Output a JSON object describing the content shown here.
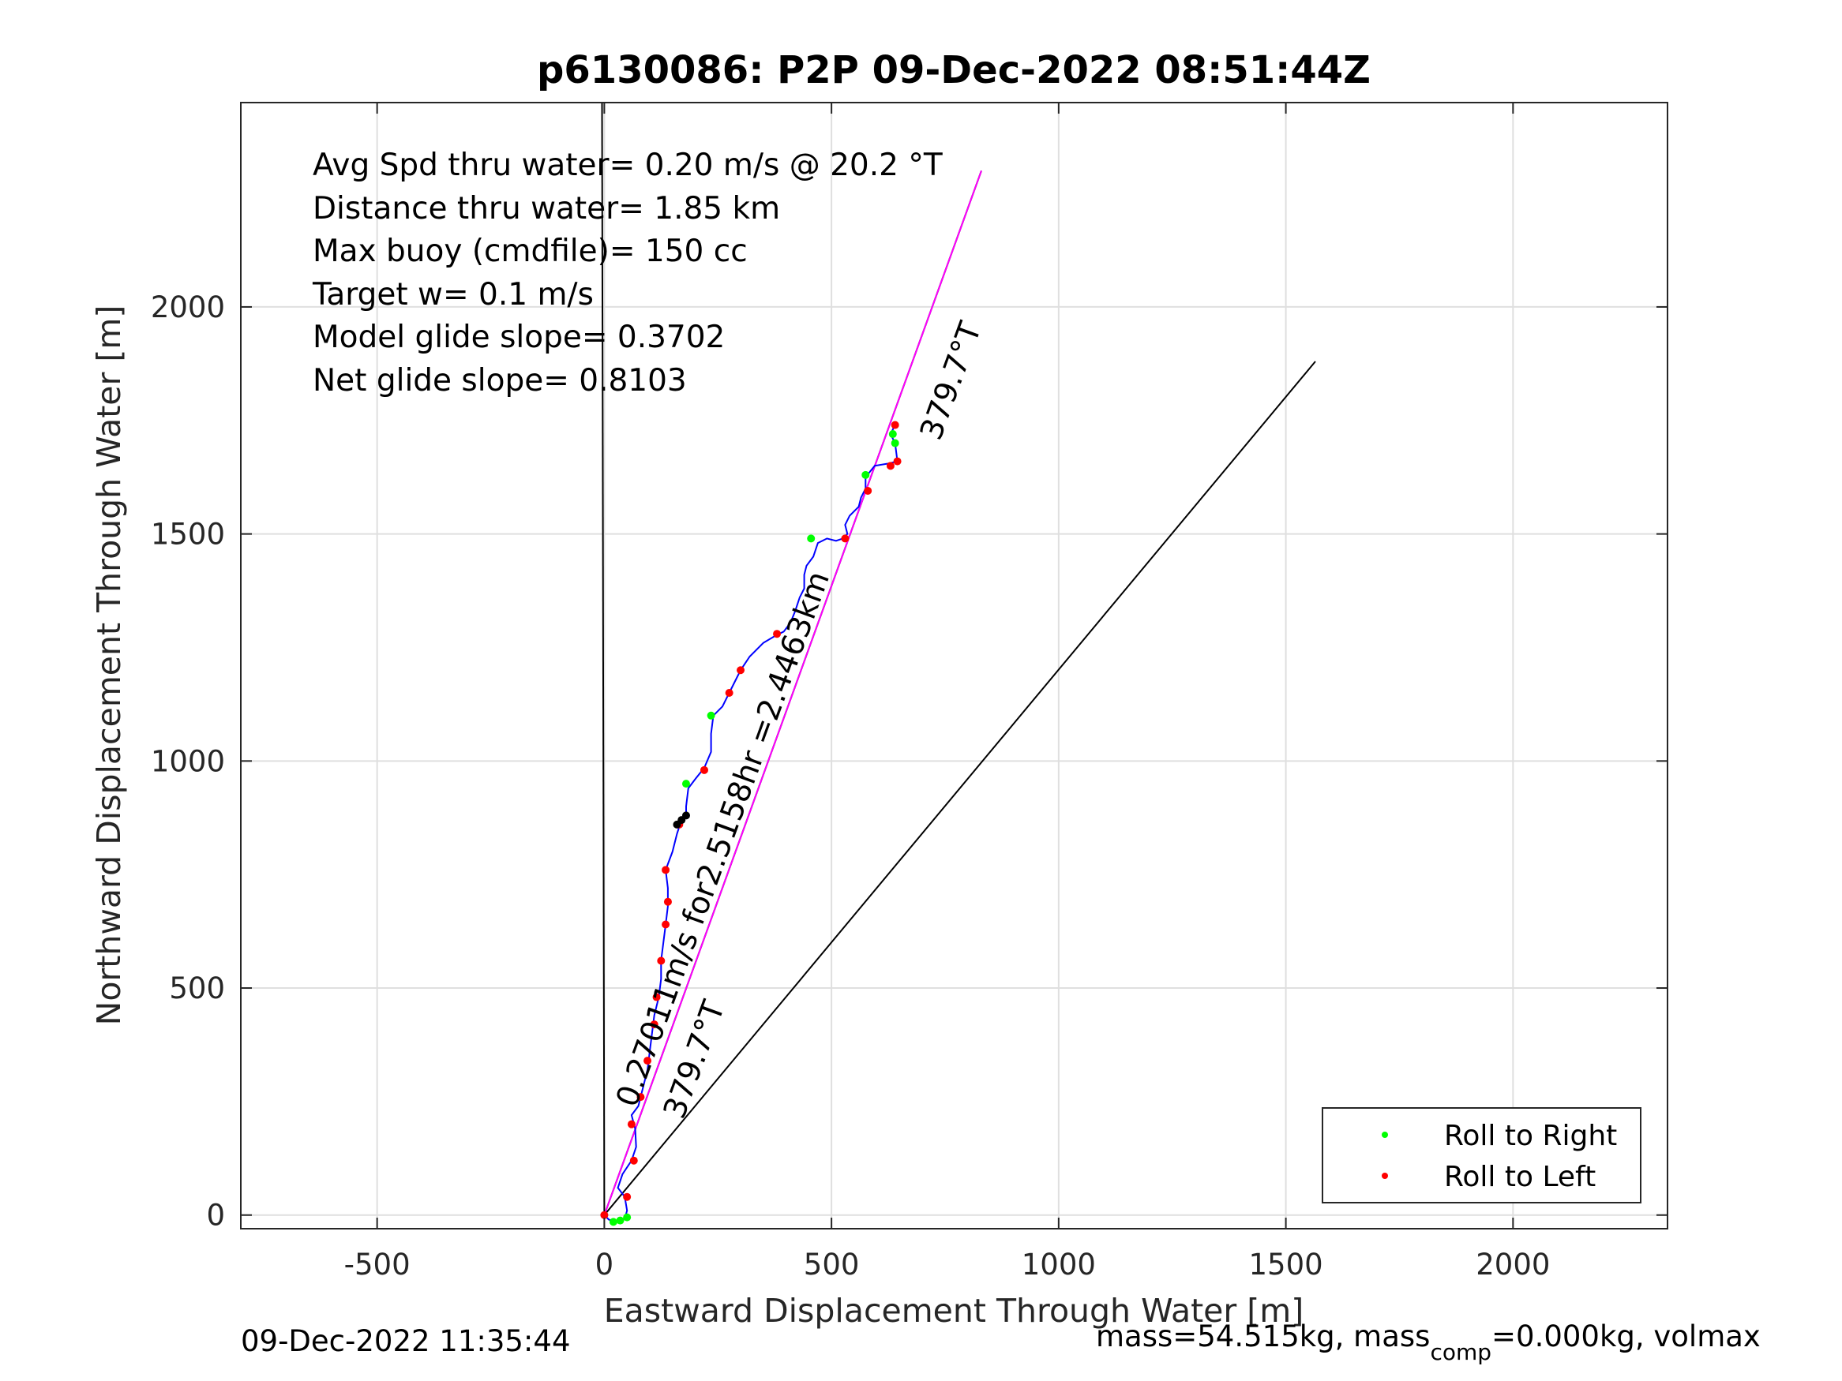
{
  "chart_data": {
    "type": "line",
    "title": "p6130086: P2P 09-Dec-2022 08:51:44Z",
    "xlabel": "Eastward Displacement Through Water [m]",
    "ylabel": "Northward Displacement Through Water [m]",
    "xlim": [
      -800,
      2340
    ],
    "ylim": [
      -30,
      2450
    ],
    "xticks": [
      "-500",
      "0",
      "500",
      "1000",
      "1500",
      "2000"
    ],
    "xtick_values": [
      -500,
      0,
      500,
      1000,
      1500,
      2000
    ],
    "yticks": [
      "0",
      "500",
      "1000",
      "1500",
      "2000"
    ],
    "ytick_values": [
      0,
      500,
      1000,
      1500,
      2000
    ],
    "grid": true,
    "legend_position": "bottom-right",
    "legend": [
      {
        "label": "Roll to Right",
        "color": "#00ff00"
      },
      {
        "label": "Roll to Left",
        "color": "#ff0000"
      }
    ],
    "stats": [
      "Avg Spd thru water=  0.20 m/s @  20.2 °T",
      "Distance thru water=  1.85 km",
      "Max buoy (cmdfile)= 150 cc",
      "Target w= 0.1 m/s",
      "Model glide slope= 0.3702",
      "Net glide slope= 0.8103"
    ],
    "annotations": {
      "heading_upper": "379.7°T",
      "heading_lower": "379.7°T",
      "speed_label": "0.27011m/s for2.5158hr =2.4463km"
    },
    "reference_lines": [
      {
        "name": "heading-line-north",
        "color": "#000000",
        "points": [
          [
            -5,
            2450
          ],
          [
            0,
            0
          ]
        ]
      },
      {
        "name": "heading-line-track",
        "color": "#000000",
        "points": [
          [
            0,
            0
          ],
          [
            830,
            2300
          ]
        ]
      },
      {
        "name": "heading-line-east",
        "color": "#000000",
        "points": [
          [
            0,
            0
          ],
          [
            1565,
            1880
          ]
        ]
      },
      {
        "name": "net-displacement-line",
        "color": "#ff00ff",
        "points": [
          [
            0,
            0
          ],
          [
            830,
            2300
          ]
        ]
      }
    ],
    "track": {
      "color": "#0000ff",
      "points": [
        [
          0,
          0
        ],
        [
          10,
          -10
        ],
        [
          25,
          -15
        ],
        [
          45,
          -8
        ],
        [
          50,
          10
        ],
        [
          45,
          40
        ],
        [
          30,
          60
        ],
        [
          40,
          90
        ],
        [
          60,
          120
        ],
        [
          70,
          150
        ],
        [
          68,
          190
        ],
        [
          60,
          220
        ],
        [
          75,
          240
        ],
        [
          85,
          280
        ],
        [
          95,
          320
        ],
        [
          100,
          360
        ],
        [
          105,
          400
        ],
        [
          110,
          440
        ],
        [
          120,
          480
        ],
        [
          125,
          520
        ],
        [
          125,
          560
        ],
        [
          130,
          600
        ],
        [
          135,
          640
        ],
        [
          140,
          680
        ],
        [
          140,
          720
        ],
        [
          135,
          760
        ],
        [
          150,
          800
        ],
        [
          160,
          840
        ],
        [
          170,
          870
        ],
        [
          180,
          880
        ],
        [
          180,
          900
        ],
        [
          185,
          940
        ],
        [
          200,
          960
        ],
        [
          220,
          985
        ],
        [
          235,
          1020
        ],
        [
          235,
          1060
        ],
        [
          240,
          1100
        ],
        [
          260,
          1120
        ],
        [
          275,
          1150
        ],
        [
          300,
          1200
        ],
        [
          320,
          1230
        ],
        [
          350,
          1260
        ],
        [
          375,
          1275
        ],
        [
          395,
          1285
        ],
        [
          410,
          1305
        ],
        [
          420,
          1330
        ],
        [
          430,
          1360
        ],
        [
          440,
          1380
        ],
        [
          440,
          1410
        ],
        [
          445,
          1430
        ],
        [
          460,
          1450
        ],
        [
          470,
          1480
        ],
        [
          490,
          1490
        ],
        [
          510,
          1485
        ],
        [
          525,
          1490
        ],
        [
          535,
          1500
        ],
        [
          530,
          1520
        ],
        [
          540,
          1540
        ],
        [
          560,
          1560
        ],
        [
          565,
          1580
        ],
        [
          575,
          1600
        ],
        [
          575,
          1625
        ],
        [
          595,
          1650
        ],
        [
          625,
          1655
        ],
        [
          645,
          1660
        ],
        [
          640,
          1700
        ],
        [
          630,
          1720
        ],
        [
          640,
          1740
        ]
      ]
    },
    "roll_to_right": [
      [
        20,
        -15
      ],
      [
        35,
        -12
      ],
      [
        50,
        -5
      ],
      [
        180,
        950
      ],
      [
        235,
        1100
      ],
      [
        455,
        1490
      ],
      [
        575,
        1630
      ],
      [
        635,
        1720
      ],
      [
        640,
        1700
      ]
    ],
    "roll_to_left": [
      [
        0,
        0
      ],
      [
        50,
        40
      ],
      [
        65,
        120
      ],
      [
        60,
        200
      ],
      [
        80,
        260
      ],
      [
        95,
        340
      ],
      [
        110,
        420
      ],
      [
        115,
        480
      ],
      [
        125,
        560
      ],
      [
        135,
        640
      ],
      [
        140,
        690
      ],
      [
        135,
        760
      ],
      [
        165,
        860
      ],
      [
        220,
        980
      ],
      [
        275,
        1150
      ],
      [
        300,
        1200
      ],
      [
        380,
        1280
      ],
      [
        530,
        1490
      ],
      [
        580,
        1595
      ],
      [
        630,
        1650
      ],
      [
        645,
        1660
      ],
      [
        640,
        1740
      ]
    ],
    "roll_to_black": [
      [
        170,
        870
      ],
      [
        180,
        880
      ],
      [
        160,
        860
      ]
    ]
  },
  "footer": {
    "timestamp": "09-Dec-2022 11:35:44",
    "mass_prefix": "mass=54.515kg, mass",
    "mass_sub": "comp",
    "mass_suffix": "=0.000kg, volmax"
  }
}
